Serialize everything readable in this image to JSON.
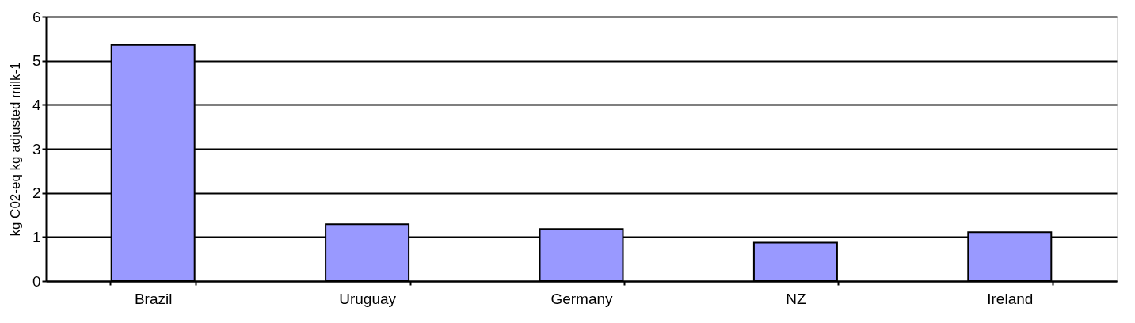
{
  "chart_data": {
    "type": "bar",
    "ylabel": "kg C02-eq kg adjusted milk-1",
    "categories": [
      "Brazil",
      "Uruguay",
      "Germany",
      "NZ",
      "Ireland"
    ],
    "values": [
      5.36,
      1.29,
      1.18,
      0.87,
      1.11
    ],
    "color": "#9999ff",
    "ylim": [
      0,
      6
    ],
    "yticks": [
      0,
      1,
      2,
      3,
      4,
      5,
      6
    ],
    "grid": "y"
  }
}
